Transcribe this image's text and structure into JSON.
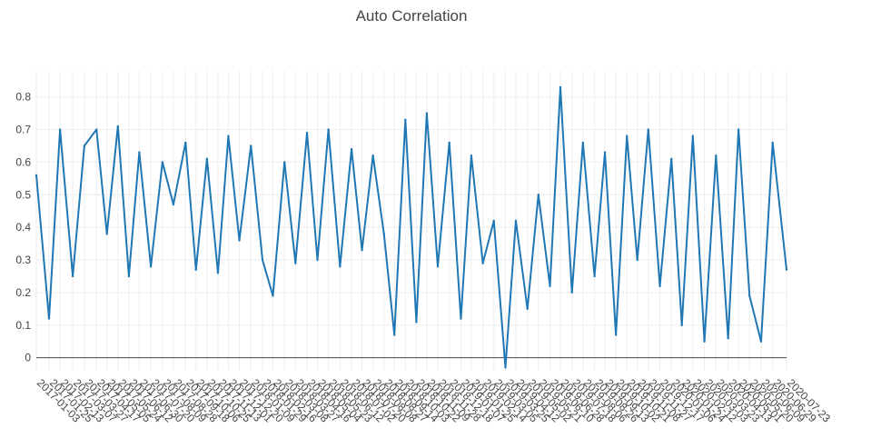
{
  "chart_data": {
    "type": "line",
    "title": "Auto Correlation",
    "xlabel": "",
    "ylabel": "",
    "grid": true,
    "legend": "none",
    "xlim": [
      "2017-01-03",
      "2020-07-23"
    ],
    "ylim": [
      -0.04,
      0.88
    ],
    "y_ticks": [
      0,
      0.1,
      0.2,
      0.3,
      0.4,
      0.5,
      0.6,
      0.7,
      0.8
    ],
    "x_ticks": [
      "2017-01-03",
      "2017-01-25",
      "2017-02-13",
      "2017-03-07",
      "2017-03-27",
      "2017-04-17",
      "2017-05-05",
      "2017-05-24",
      "2017-06-12",
      "2017-06-30",
      "2017-07-20",
      "2017-08-09",
      "2017-08-28",
      "2017-09-18",
      "2017-10-06",
      "2017-10-25",
      "2017-11-13",
      "2017-12-01",
      "2017-12-20",
      "2018-01-09",
      "2018-01-29",
      "2018-02-16",
      "2018-03-08",
      "2018-03-27",
      "2018-04-16",
      "2018-05-04",
      "2018-05-23",
      "2018-06-12",
      "2018-07-02",
      "2018-07-20",
      "2018-08-08",
      "2018-08-27",
      "2018-09-14",
      "2018-10-03",
      "2018-10-22",
      "2018-11-09",
      "2018-11-28",
      "2018-12-18",
      "2019-01-07",
      "2019-01-25",
      "2019-02-14",
      "2019-03-05",
      "2019-03-25",
      "2019-04-12",
      "2019-05-02",
      "2019-05-21",
      "2019-06-10",
      "2019-06-28",
      "2019-07-18",
      "2019-08-06",
      "2019-08-26",
      "2019-09-13",
      "2019-10-02",
      "2019-10-21",
      "2019-11-08",
      "2019-11-27",
      "2019-12-17",
      "2020-01-06",
      "2020-01-24",
      "2020-02-12",
      "2020-03-03",
      "2020-03-23",
      "2020-04-13",
      "2020-05-01",
      "2020-05-20",
      "2020-06-09",
      "2020-06-29",
      "2020-07-23"
    ],
    "series": [
      {
        "color": "#1f77b4",
        "x": [
          "2017-01-03",
          "2017-01-25",
          "2017-02-13",
          "2017-03-07",
          "2017-03-27",
          "2017-04-17",
          "2017-05-05",
          "2017-05-24",
          "2017-06-12",
          "2017-06-30",
          "2017-07-20",
          "2017-08-09",
          "2017-08-28",
          "2017-09-18",
          "2017-10-06",
          "2017-10-25",
          "2017-11-13",
          "2017-12-01",
          "2017-12-20",
          "2018-01-09",
          "2018-01-29",
          "2018-02-16",
          "2018-03-08",
          "2018-03-27",
          "2018-04-16",
          "2018-05-04",
          "2018-05-23",
          "2018-06-12",
          "2018-07-02",
          "2018-07-20",
          "2018-08-08",
          "2018-08-27",
          "2018-09-14",
          "2018-10-03",
          "2018-10-22",
          "2018-11-09",
          "2018-11-28",
          "2018-12-18",
          "2019-01-07",
          "2019-01-25",
          "2019-02-14",
          "2019-03-05",
          "2019-03-25",
          "2019-04-12",
          "2019-05-02",
          "2019-05-21",
          "2019-06-10",
          "2019-06-28",
          "2019-07-18",
          "2019-08-06",
          "2019-08-26",
          "2019-09-13",
          "2019-10-02",
          "2019-10-21",
          "2019-11-08",
          "2019-11-27",
          "2019-12-17",
          "2020-01-06",
          "2020-01-24",
          "2020-02-12",
          "2020-03-03",
          "2020-03-23",
          "2020-04-13",
          "2020-05-01",
          "2020-05-20",
          "2020-06-09",
          "2020-06-29",
          "2020-07-23"
        ],
        "values": [
          0.56,
          0.12,
          0.7,
          0.25,
          0.65,
          0.7,
          0.38,
          0.71,
          0.25,
          0.63,
          0.28,
          0.6,
          0.47,
          0.66,
          0.27,
          0.61,
          0.26,
          0.68,
          0.36,
          0.65,
          0.3,
          0.19,
          0.6,
          0.29,
          0.69,
          0.3,
          0.7,
          0.28,
          0.64,
          0.33,
          0.62,
          0.38,
          0.07,
          0.73,
          0.11,
          0.75,
          0.28,
          0.66,
          0.12,
          0.62,
          0.29,
          0.42,
          -0.03,
          0.42,
          0.15,
          0.5,
          0.22,
          0.83,
          0.2,
          0.66,
          0.25,
          0.63,
          0.07,
          0.68,
          0.3,
          0.7,
          0.22,
          0.61,
          0.1,
          0.68,
          0.05,
          0.62,
          0.06,
          0.7,
          0.19,
          0.05,
          0.66,
          0.27
        ]
      }
    ]
  }
}
